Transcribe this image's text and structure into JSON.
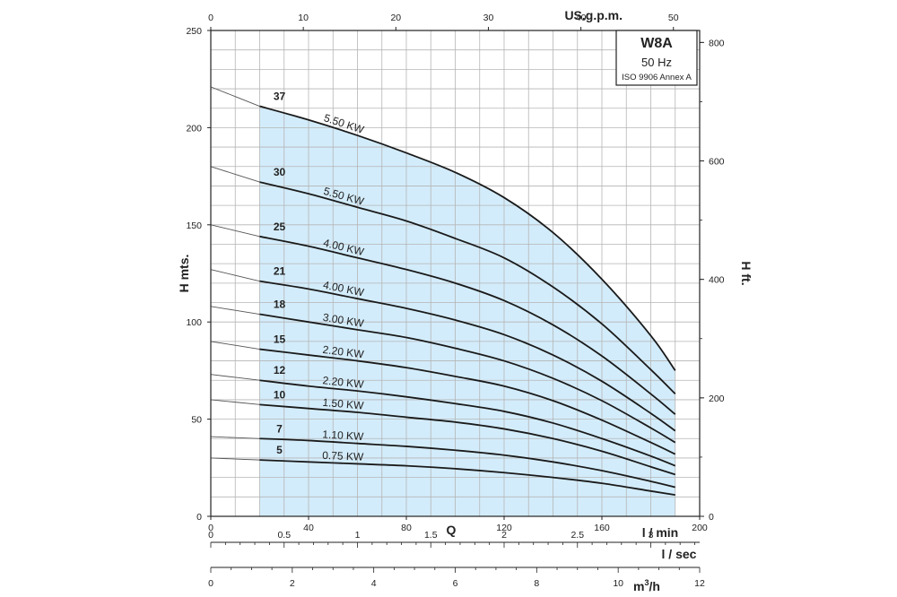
{
  "chart_data": {
    "type": "line",
    "title": "W8A",
    "subtitle_lines": [
      "50 Hz",
      "ISO 9906 Annex A"
    ],
    "xlabel": "l / min",
    "center_label": "Q",
    "ylabel": "H mts.",
    "y2label": "H ft.",
    "x2label": "US.g.p.m.",
    "x3label": "l / sec",
    "x4label_main": "m",
    "x4label_sup": "3",
    "x4label_tail": "/h",
    "xlim": [
      0,
      200
    ],
    "ylim": [
      0,
      250
    ],
    "grid": true,
    "x_ticks": [
      "0",
      "40",
      "80",
      "120",
      "160",
      "200"
    ],
    "y_ticks": [
      "0",
      "50",
      "100",
      "150",
      "200",
      "250"
    ],
    "y2_ticks": [
      "0",
      "200",
      "400",
      "600",
      "800"
    ],
    "top_ticks": [
      "0",
      "10",
      "20",
      "30",
      "40",
      "50"
    ],
    "lsec_ticks": [
      "0",
      "0.5",
      "1",
      "1.5",
      "2",
      "2.5",
      "3"
    ],
    "m3h_ticks": [
      "0",
      "2",
      "4",
      "6",
      "8",
      "10",
      "12"
    ],
    "operating_range": [
      20,
      190
    ],
    "series": [
      {
        "name": "5",
        "power": "0.75 KW",
        "points": [
          [
            0,
            30
          ],
          [
            20,
            29
          ],
          [
            40,
            28
          ],
          [
            60,
            27
          ],
          [
            80,
            26
          ],
          [
            100,
            24.5
          ],
          [
            120,
            22.5
          ],
          [
            140,
            20
          ],
          [
            160,
            17
          ],
          [
            180,
            13
          ],
          [
            190,
            11
          ]
        ]
      },
      {
        "name": "7",
        "power": "1.10 KW",
        "points": [
          [
            0,
            41
          ],
          [
            20,
            40
          ],
          [
            40,
            39
          ],
          [
            60,
            37.5
          ],
          [
            80,
            36
          ],
          [
            100,
            34
          ],
          [
            120,
            31.5
          ],
          [
            140,
            28
          ],
          [
            160,
            23.5
          ],
          [
            180,
            18
          ],
          [
            190,
            15
          ]
        ]
      },
      {
        "name": "10",
        "power": "1.50 KW",
        "points": [
          [
            0,
            60
          ],
          [
            20,
            57.5
          ],
          [
            40,
            55.5
          ],
          [
            60,
            53.5
          ],
          [
            80,
            51
          ],
          [
            100,
            48.5
          ],
          [
            120,
            45
          ],
          [
            140,
            40
          ],
          [
            160,
            33.5
          ],
          [
            180,
            25.5
          ],
          [
            190,
            21.5
          ]
        ]
      },
      {
        "name": "12",
        "power": "2.20 KW",
        "points": [
          [
            0,
            73
          ],
          [
            20,
            70
          ],
          [
            40,
            67
          ],
          [
            60,
            64.5
          ],
          [
            80,
            61.5
          ],
          [
            100,
            58
          ],
          [
            120,
            54
          ],
          [
            140,
            48
          ],
          [
            160,
            40
          ],
          [
            180,
            31
          ],
          [
            190,
            26
          ]
        ]
      },
      {
        "name": "15",
        "power": "2.20 KW",
        "points": [
          [
            0,
            90
          ],
          [
            20,
            86
          ],
          [
            40,
            83
          ],
          [
            60,
            80
          ],
          [
            80,
            76.5
          ],
          [
            100,
            72
          ],
          [
            120,
            67
          ],
          [
            140,
            59.5
          ],
          [
            160,
            49.5
          ],
          [
            180,
            38
          ],
          [
            190,
            32
          ]
        ]
      },
      {
        "name": "18",
        "power": "3.00 KW",
        "points": [
          [
            0,
            108
          ],
          [
            20,
            104
          ],
          [
            40,
            100
          ],
          [
            60,
            96
          ],
          [
            80,
            92
          ],
          [
            100,
            86.5
          ],
          [
            120,
            80
          ],
          [
            140,
            71
          ],
          [
            160,
            59.5
          ],
          [
            180,
            45.5
          ],
          [
            190,
            38
          ]
        ]
      },
      {
        "name": "21",
        "power": "4.00 KW",
        "points": [
          [
            0,
            127
          ],
          [
            20,
            121
          ],
          [
            40,
            117
          ],
          [
            60,
            112
          ],
          [
            80,
            107
          ],
          [
            100,
            101
          ],
          [
            120,
            93.5
          ],
          [
            140,
            83
          ],
          [
            160,
            69.5
          ],
          [
            180,
            53
          ],
          [
            190,
            44
          ]
        ]
      },
      {
        "name": "25",
        "power": "4.00 KW",
        "points": [
          [
            0,
            150
          ],
          [
            20,
            144
          ],
          [
            40,
            139
          ],
          [
            60,
            133
          ],
          [
            80,
            127
          ],
          [
            100,
            120
          ],
          [
            120,
            111
          ],
          [
            140,
            98.5
          ],
          [
            160,
            82.5
          ],
          [
            180,
            63
          ],
          [
            190,
            52.5
          ]
        ]
      },
      {
        "name": "30",
        "power": "5.50 KW",
        "points": [
          [
            0,
            180
          ],
          [
            20,
            172
          ],
          [
            40,
            166
          ],
          [
            60,
            159
          ],
          [
            80,
            152
          ],
          [
            100,
            143
          ],
          [
            120,
            133
          ],
          [
            140,
            118
          ],
          [
            160,
            99
          ],
          [
            180,
            75.5
          ],
          [
            190,
            63
          ]
        ]
      },
      {
        "name": "37",
        "power": "5.50 KW",
        "points": [
          [
            0,
            221
          ],
          [
            20,
            211
          ],
          [
            40,
            204
          ],
          [
            60,
            196
          ],
          [
            80,
            187
          ],
          [
            100,
            177
          ],
          [
            120,
            164
          ],
          [
            140,
            146
          ],
          [
            160,
            122
          ],
          [
            180,
            93
          ],
          [
            190,
            75
          ]
        ]
      }
    ]
  }
}
